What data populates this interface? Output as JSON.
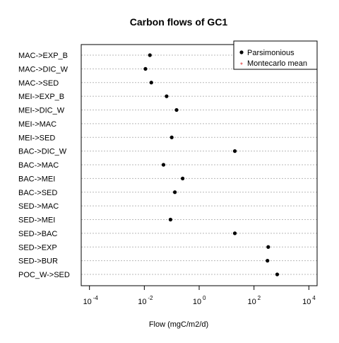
{
  "chart_data": {
    "type": "scatter",
    "title": "Carbon flows of GC1",
    "xlabel": "Flow (mgC/m2/d)",
    "ylabel": "",
    "x_scale": "log10",
    "xlim": [
      5e-05,
      20000
    ],
    "x_tick_base": "10",
    "x_ticks": [
      {
        "value": 0.0001,
        "exp": "-4"
      },
      {
        "value": 0.01,
        "exp": "-2"
      },
      {
        "value": 1,
        "exp": "0"
      },
      {
        "value": 100,
        "exp": "2"
      },
      {
        "value": 10000,
        "exp": "4"
      }
    ],
    "categories": [
      "MAC->EXP_B",
      "MAC->DIC_W",
      "MAC->SED",
      "MEI->EXP_B",
      "MEI->DIC_W",
      "MEI->MAC",
      "MEI->SED",
      "BAC->DIC_W",
      "BAC->MAC",
      "BAC->MEI",
      "BAC->SED",
      "SED->MAC",
      "SED->MEI",
      "SED->BAC",
      "SED->EXP",
      "SED->BUR",
      "POC_W->SED"
    ],
    "grid": "horizontal dotted",
    "legend_position": "top-right",
    "series": [
      {
        "name": "Parsimonious",
        "marker": "filled-circle",
        "color": "#000000",
        "values": [
          0.016,
          0.011,
          0.018,
          0.065,
          0.15,
          null,
          0.1,
          20,
          0.05,
          0.25,
          0.13,
          null,
          0.09,
          20,
          330,
          310,
          700
        ]
      },
      {
        "name": "Montecarlo mean",
        "marker": "star",
        "color": "#dd3333",
        "values": []
      }
    ]
  }
}
